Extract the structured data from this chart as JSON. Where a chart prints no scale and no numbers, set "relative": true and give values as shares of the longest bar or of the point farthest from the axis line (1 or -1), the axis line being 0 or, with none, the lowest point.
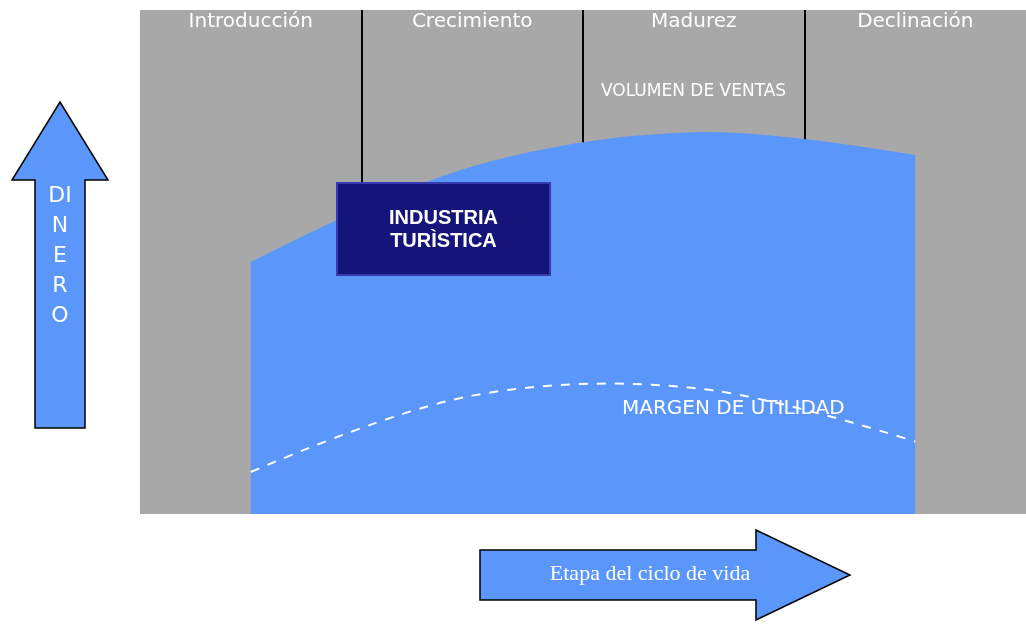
{
  "chart_data": {
    "type": "area",
    "relative": true,
    "xlabel": "Etapa del ciclo de vida",
    "ylabel": "DINERO",
    "categories": [
      "Introducción",
      "Crecimiento",
      "Madurez",
      "Declinación"
    ],
    "series": [
      {
        "name": "VOLUMEN DE VENTAS",
        "color": "#5b96fa",
        "values": [
          0.66,
          0.91,
          1,
          0.94
        ]
      },
      {
        "name": "MARGEN DE UTILIDAD",
        "type": "line",
        "line_style": "dashed",
        "color": "#ffffff",
        "values": [
          0.11,
          0.31,
          0.33,
          0.19
        ]
      }
    ],
    "annotations": [
      "INDUSTRIA TURÌSTICA"
    ],
    "grid": "x",
    "legend": false
  }
}
